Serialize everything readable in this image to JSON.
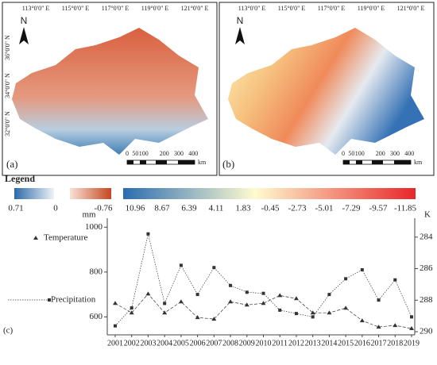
{
  "maps": [
    {
      "label": "(a)",
      "lon_labels": [
        "113°0'0\" E",
        "115°0'0\" E",
        "117°0'0\" E",
        "119°0'0\" E",
        "121°0'0\" E"
      ],
      "lat_labels": [
        "36°0'0\" N",
        "34°0'0\" N",
        "32°0'0\" N"
      ]
    },
    {
      "label": "(b)",
      "lon_labels": [
        "113°0'0\" E",
        "115°0'0\" E",
        "117°0'0\" E",
        "119°0'0\" E",
        "121°0'0\" E"
      ]
    }
  ],
  "north": "N",
  "scale": {
    "labels": [
      "0",
      "50",
      "100",
      "200",
      "300",
      "400"
    ],
    "unit": "km"
  },
  "legend": {
    "title": "Legend",
    "bars": [
      {
        "labels": [
          "0.71",
          "0"
        ]
      },
      {
        "labels": [
          "-0.76"
        ]
      },
      {
        "labels": [
          "10.96",
          "8.67",
          "6.39",
          "4.11",
          "1.83",
          "-0.45",
          "-2.73",
          "-5.01",
          "-7.29",
          "-9.57",
          "-11.85"
        ]
      }
    ]
  },
  "chart_data": {
    "type": "line",
    "label": "(c)",
    "y_label": "mm",
    "y2_label": "K",
    "x": [
      2001,
      2002,
      2003,
      2004,
      2005,
      2006,
      2007,
      2008,
      2009,
      2010,
      2011,
      2012,
      2013,
      2014,
      2015,
      2016,
      2017,
      2018,
      2019
    ],
    "series": [
      {
        "name": "Temperature",
        "color": "#333333",
        "marker": "triangle",
        "axis": "y2",
        "values": [
          288.2,
          288.8,
          287.6,
          288.8,
          288.1,
          289.1,
          289.2,
          288.1,
          288.3,
          288.2,
          287.7,
          287.9,
          288.8,
          288.8,
          288.5,
          289.3,
          289.7,
          289.6,
          289.8
        ]
      },
      {
        "name": "Precipitation",
        "color": "#333333",
        "marker": "square",
        "values": [
          560,
          640,
          970,
          660,
          830,
          700,
          820,
          740,
          710,
          705,
          630,
          615,
          600,
          700,
          770,
          810,
          675,
          765,
          600
        ]
      }
    ],
    "ylim": [
      520,
      1040
    ],
    "yticks": [
      600,
      800,
      1000
    ],
    "y2lim": [
      282.8,
      290.2
    ],
    "y2ticks": [
      284,
      286,
      288,
      290
    ],
    "y2_inverted": true
  }
}
